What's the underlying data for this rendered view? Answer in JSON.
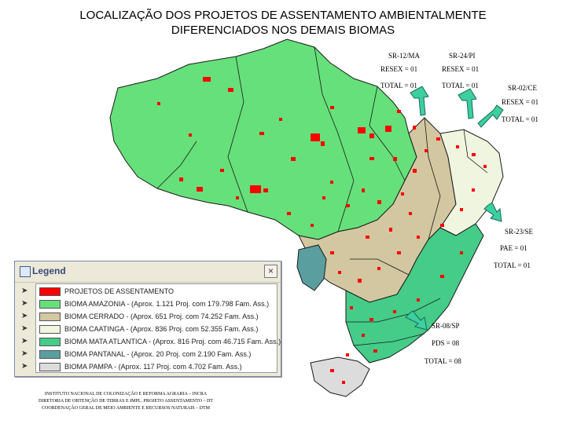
{
  "title": {
    "line1": "LOCALIZAÇÃO DOS PROJETOS DE ASSENTAMENTO AMBIENTALMENTE",
    "line2": "DIFERENCIADOS NOS DEMAIS BIOMAS"
  },
  "callouts": {
    "sr12": {
      "name": "SR-12/MA",
      "resex": "RESEX = 01",
      "total": "TOTAL = 01"
    },
    "sr24": {
      "name": "SR-24/PI",
      "resex": "RESEX = 01",
      "total": "TOTAL = 01"
    },
    "sr02": {
      "name": "SR-02/CE",
      "resex": "RESEX = 01",
      "total": "TOTAL = 01"
    },
    "sr23": {
      "name": "SR-23/SE",
      "pae": "PAE = 01",
      "total": "TOTAL = 01"
    },
    "sr08": {
      "name": "SR-08/SP",
      "pds": "PDS = 08",
      "total": "TOTAL = 08"
    }
  },
  "legend": {
    "title": "Legend",
    "close": "×",
    "items": [
      {
        "label": "PROJETOS DE ASSENTAMENTO",
        "color": "#ff0000"
      },
      {
        "label": "BIOMA AMAZONIA - (Aprox. 1.121 Proj. com 179.798 Fam. Ass.)",
        "color": "#66e07a"
      },
      {
        "label": "BIOMA CERRADO - (Aprox. 651 Proj. com 74.252 Fam. Ass.)",
        "color": "#d2c7a0"
      },
      {
        "label": "BIOMA CAATINGA - (Aprox. 836 Proj. com 52.355 Fam. Ass.)",
        "color": "#f0f5e0"
      },
      {
        "label": "BIOMA MATA ATLANTICA - (Aprox. 816 Proj. com 46.715 Fam. Ass.)",
        "color": "#44cc88"
      },
      {
        "label": "BIOMA PANTANAL - (Aprox. 20 Proj. com 2.190 Fam. Ass.)",
        "color": "#5b9ea0"
      },
      {
        "label": "BIOMA PAMPA - (Aprox. 117 Proj. com 4.702 Fam. Ass.)",
        "color": "#dcdcdc"
      }
    ]
  },
  "footer": {
    "line1": "INSTITUTO NACIONAL DE COLONIZAÇÃO E REFORMA AGRARIA – INCRA",
    "line2": "DIRETORIA DE OBTENÇÃO DE TERRAS E IMPL. PROJETO ASSENTAMENTO – DT",
    "line3": "COORDENAÇÃO GERAL DE MEIO AMBIENTE E RECURSOS NATURAIS – DTM"
  },
  "colors": {
    "amazonia": "#66e07a",
    "cerrado": "#d2c7a0",
    "caatinga": "#f0f5e0",
    "mata_atlantica": "#44cc88",
    "pantanal": "#5b9ea0",
    "pampa": "#dcdcdc",
    "projects": "#ff0000",
    "arrow": "#3ccfa0"
  }
}
